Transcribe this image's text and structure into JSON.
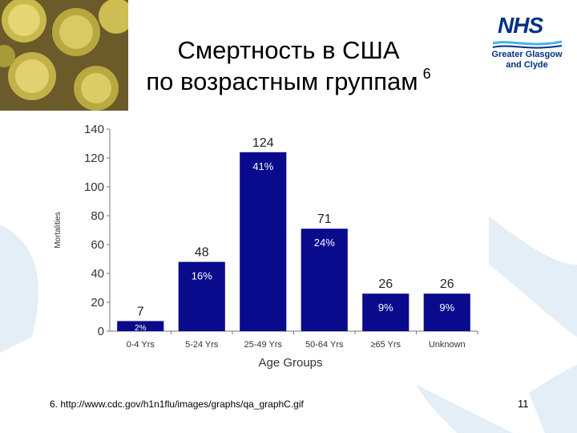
{
  "slide": {
    "title_line1": "Смертность в США",
    "title_line2": "по возрастным группам",
    "title_sup": "6",
    "footnote": "6. http://www.cdc.gov/h1n1flu/images/graphs/qa_graphC.gif",
    "page_number": "11"
  },
  "logo": {
    "nhs": "NHS",
    "line1": "Greater Glasgow",
    "line2": "and Clyde"
  },
  "colors": {
    "bar": "#0a0a8c",
    "watermark": "#e3eef6",
    "nhs_blue": "#003087"
  },
  "chart_data": {
    "type": "bar",
    "categories": [
      "0-4 Yrs",
      "5-24 Yrs",
      "25-49 Yrs",
      "50-64 Yrs",
      "≥65  Yrs",
      "Unknown"
    ],
    "values": [
      7,
      48,
      124,
      71,
      26,
      26
    ],
    "value_labels": [
      "7",
      "48",
      "124",
      "71",
      "26",
      "26"
    ],
    "percent_labels": [
      "2%",
      "16%",
      "41%",
      "24%",
      "9%",
      "9%"
    ],
    "xlabel": "Age Groups",
    "ylabel": "Mortalities",
    "ylim": [
      0,
      140
    ],
    "yticks": [
      0,
      20,
      40,
      60,
      80,
      100,
      120,
      140
    ],
    "grid": false
  }
}
